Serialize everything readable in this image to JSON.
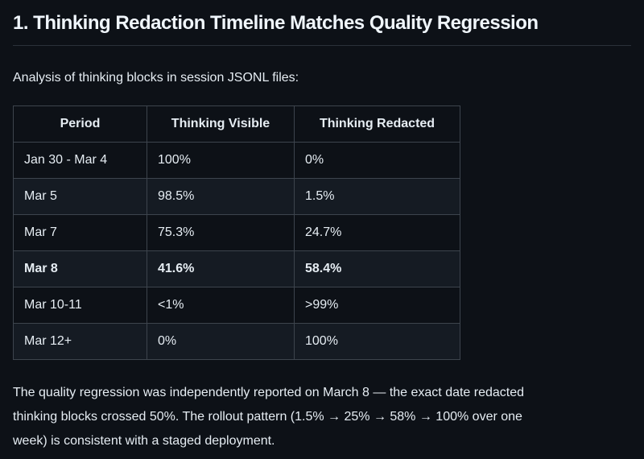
{
  "page": {
    "background_color": "#0d1117",
    "text_color": "#e6edf3",
    "table_border_color": "#3d444d",
    "row_stripe_color": "#151b23"
  },
  "heading": "1. Thinking Redaction Timeline Matches Quality Regression",
  "intro": "Analysis of thinking blocks in session JSONL files:",
  "table": {
    "columns": [
      "Period",
      "Thinking Visible",
      "Thinking Redacted"
    ],
    "rows": [
      {
        "period": "Jan 30 - Mar 4",
        "visible": "100%",
        "redacted": "0%",
        "emphasis": false
      },
      {
        "period": "Mar 5",
        "visible": "98.5%",
        "redacted": "1.5%",
        "emphasis": false
      },
      {
        "period": "Mar 7",
        "visible": "75.3%",
        "redacted": "24.7%",
        "emphasis": false
      },
      {
        "period": "Mar 8",
        "visible": "41.6%",
        "redacted": "58.4%",
        "emphasis": true
      },
      {
        "period": "Mar 10-11",
        "visible": "<1%",
        "redacted": ">99%",
        "emphasis": false
      },
      {
        "period": "Mar 12+",
        "visible": "0%",
        "redacted": "100%",
        "emphasis": false
      }
    ]
  },
  "footer": "The quality regression was independently reported on March 8 — the exact date redacted thinking blocks crossed 50%. The rollout pattern (1.5% → 25% → 58% → 100% over one week) is consistent with a staged deployment."
}
